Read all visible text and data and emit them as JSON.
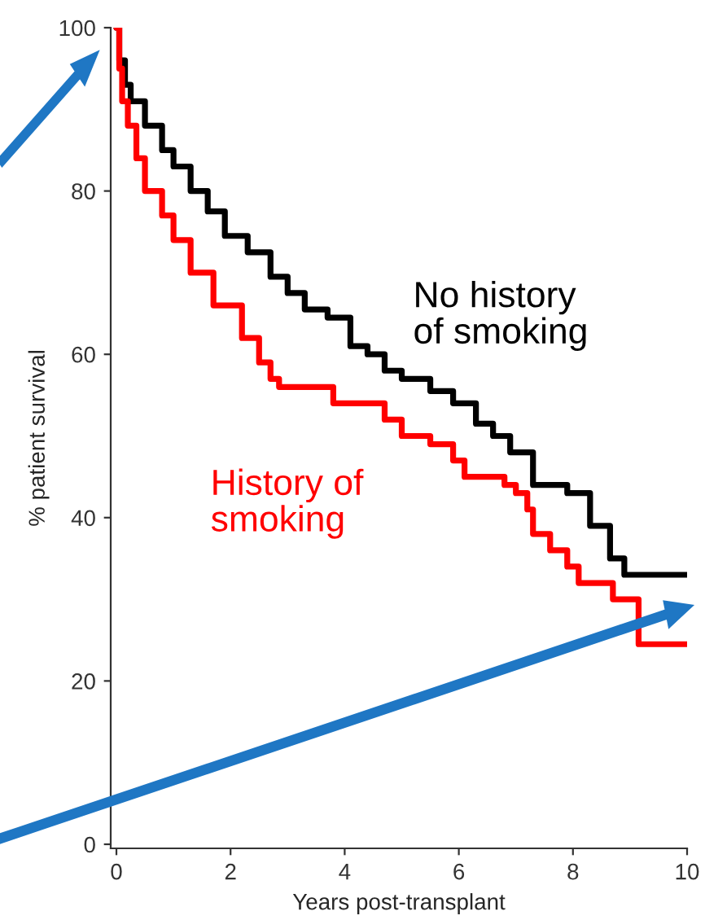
{
  "chart_data": {
    "type": "step",
    "xlabel": "Years post-transplant",
    "ylabel": "% patient survival",
    "xlim": [
      -0.1,
      10
    ],
    "ylim": [
      -0.5,
      100
    ],
    "xticks": [
      0,
      2,
      4,
      6,
      8,
      10
    ],
    "yticks": [
      0,
      20,
      40,
      60,
      80,
      100
    ],
    "grid": false,
    "legend": false,
    "series": [
      {
        "name": "No history\nof smoking",
        "color": "#000000",
        "x": [
          0,
          0.05,
          0.15,
          0.25,
          0.5,
          0.8,
          1.0,
          1.3,
          1.6,
          1.9,
          2.3,
          2.7,
          3.0,
          3.3,
          3.7,
          4.1,
          4.4,
          4.7,
          5.0,
          5.5,
          5.9,
          6.3,
          6.6,
          6.9,
          7.3,
          7.9,
          8.3,
          8.55,
          8.65,
          8.9,
          10
        ],
        "values": [
          100,
          96,
          93,
          91,
          88,
          85,
          83,
          80,
          77.5,
          74.5,
          72.5,
          69.5,
          67.5,
          65.5,
          64.5,
          61,
          60,
          58,
          57,
          55.5,
          54,
          51.5,
          50,
          48,
          44,
          43,
          39,
          39,
          35,
          33,
          33
        ]
      },
      {
        "name": "History of\nsmoking",
        "color": "#ff0000",
        "x": [
          0,
          0.05,
          0.1,
          0.2,
          0.35,
          0.5,
          0.8,
          1.0,
          1.3,
          1.7,
          2.2,
          2.5,
          2.7,
          2.85,
          3.6,
          3.8,
          4.5,
          4.7,
          5.0,
          5.5,
          5.9,
          6.1,
          6.8,
          7.0,
          7.2,
          7.3,
          7.6,
          7.9,
          8.1,
          8.6,
          8.7,
          9.1,
          9.15,
          10
        ],
        "values": [
          100,
          95,
          91,
          88,
          84,
          80,
          77,
          74,
          70,
          66,
          62,
          59,
          57,
          56,
          56,
          54,
          54,
          52,
          50,
          49,
          47,
          45,
          44,
          43,
          41,
          38,
          36,
          34,
          32,
          32,
          30,
          30,
          24.5,
          24.5
        ]
      }
    ]
  }
}
